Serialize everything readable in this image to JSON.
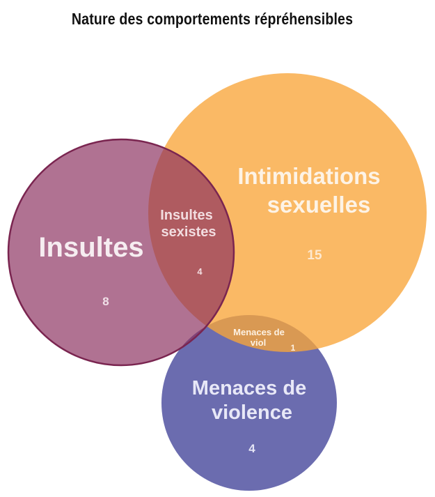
{
  "title": "Nature des comportements répréhensibles",
  "chart_data": {
    "type": "venn",
    "title": "Nature des comportements répréhensibles",
    "sets": [
      {
        "id": "insultes",
        "name": "Insultes",
        "value": 8,
        "color": "#8b2f5e"
      },
      {
        "id": "intimidations",
        "name_lines": [
          "Intimidations",
          "sexuelles"
        ],
        "value": 15,
        "color": "#f8a53a"
      },
      {
        "id": "menaces",
        "name_lines": [
          "Menaces de",
          "violence"
        ],
        "value": 4,
        "color": "#5e5fa8"
      }
    ],
    "intersections": [
      {
        "sets": [
          "insultes",
          "intimidations"
        ],
        "name_lines": [
          "Insultes",
          "sexistes"
        ],
        "value": 4
      },
      {
        "sets": [
          "intimidations",
          "menaces"
        ],
        "name_lines": [
          "Menaces de",
          "viol"
        ],
        "value": 1
      }
    ]
  },
  "colors": {
    "insultes_fill": "#8b2f5e",
    "insultes_stroke": "#7a2550",
    "intimidations_fill": "#f8a53a",
    "menaces_fill": "#5e5fa8",
    "label_light": "#f3e8ee",
    "label_cream": "#fdf1e2",
    "label_lavender": "#e6e6f6"
  }
}
